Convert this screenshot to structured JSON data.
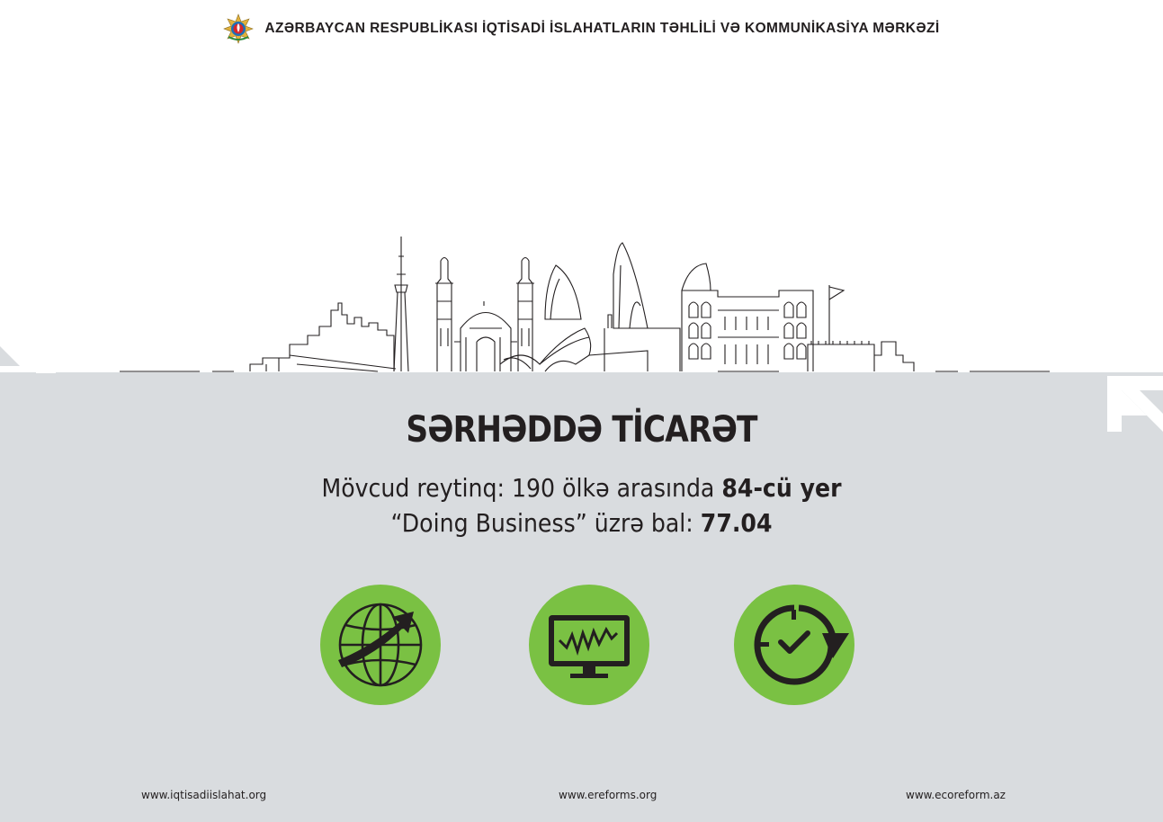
{
  "header": {
    "title": "AZƏRBAYCAN RESPUBLİKASI İQTİSADİ İSLAHATLARIN TƏHLİLİ VƏ KOMMUNİKASİYA MƏRKƏZİ",
    "emblem_icon": "azerbaijan-coat-of-arms-icon"
  },
  "main": {
    "title": "SƏRHƏDDƏ TİCARƏT",
    "rating_prefix": "Mövcud reytinq: 190 ölkə arasında ",
    "rating_value": "84-cü yer",
    "score_prefix": "“Doing Business” üzrə bal: ",
    "score_value": "77.04"
  },
  "icons": [
    {
      "name": "globe-arrow-icon"
    },
    {
      "name": "monitor-chart-icon"
    },
    {
      "name": "clock-check-icon"
    }
  ],
  "footer": {
    "link1": "www.iqtisadiislahat.org",
    "link2": "www.ereforms.org",
    "link3": "www.ecoreform.az"
  },
  "colors": {
    "accent": "#7ac143",
    "panel": "#d9dcdf",
    "text": "#231f20"
  }
}
